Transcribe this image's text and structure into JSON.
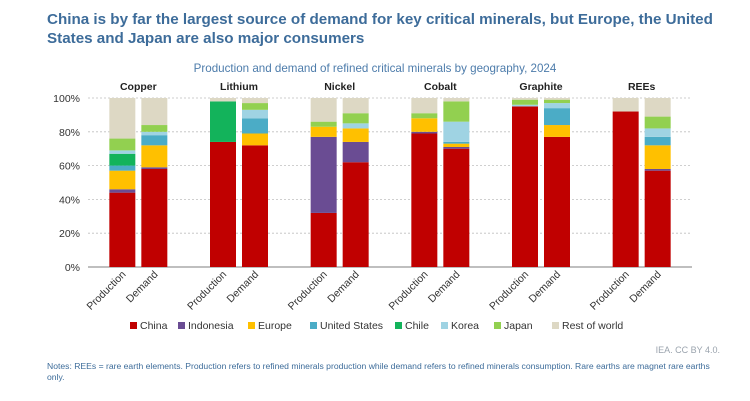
{
  "title": "China is by far the largest source of demand for key critical minerals, but Europe, the United States and Japan are also major consumers",
  "credit": "IEA. CC BY 4.0.",
  "notes": "Notes: REEs = rare earth elements. Production refers to refined minerals production while demand refers to refined minerals consumption. Rare earths are magnet rare earths only.",
  "chart_data": {
    "type": "bar",
    "stacked": true,
    "title": "Production and demand of refined critical minerals by geography, 2024",
    "ylim": [
      0,
      100
    ],
    "yticks": [
      "0%",
      "20%",
      "40%",
      "60%",
      "80%",
      "100%"
    ],
    "grid": true,
    "legend_position": "bottom",
    "groups": [
      "Copper",
      "Lithium",
      "Nickel",
      "Cobalt",
      "Graphite",
      "REEs"
    ],
    "categories": [
      "Production",
      "Demand"
    ],
    "series": [
      {
        "name": "China",
        "color": "#c00000",
        "values": [
          [
            44,
            58
          ],
          [
            74,
            72
          ],
          [
            32,
            62
          ],
          [
            79,
            70
          ],
          [
            95,
            77
          ],
          [
            92,
            57
          ]
        ]
      },
      {
        "name": "Indonesia",
        "color": "#6a4c93",
        "values": [
          [
            2,
            1
          ],
          [
            0,
            0
          ],
          [
            45,
            12
          ],
          [
            1,
            1
          ],
          [
            0,
            0
          ],
          [
            0,
            1
          ]
        ]
      },
      {
        "name": "Europe",
        "color": "#ffc000",
        "values": [
          [
            11,
            13
          ],
          [
            0,
            7
          ],
          [
            6,
            8
          ],
          [
            8,
            2
          ],
          [
            0,
            7
          ],
          [
            0,
            14
          ]
        ]
      },
      {
        "name": "United States",
        "color": "#4bacc6",
        "values": [
          [
            3,
            6
          ],
          [
            0,
            9
          ],
          [
            0,
            0
          ],
          [
            0,
            1
          ],
          [
            0,
            10
          ],
          [
            0,
            5
          ]
        ]
      },
      {
        "name": "Chile",
        "color": "#13b35b",
        "values": [
          [
            7,
            0
          ],
          [
            24,
            0
          ],
          [
            0,
            0
          ],
          [
            0,
            0
          ],
          [
            0,
            0
          ],
          [
            0,
            0
          ]
        ]
      },
      {
        "name": "Korea",
        "color": "#9fd3e3",
        "values": [
          [
            2,
            2
          ],
          [
            0,
            5
          ],
          [
            0,
            3
          ],
          [
            0,
            12
          ],
          [
            1,
            3
          ],
          [
            0,
            5
          ]
        ]
      },
      {
        "name": "Japan",
        "color": "#92d050",
        "values": [
          [
            7,
            4
          ],
          [
            0,
            4
          ],
          [
            3,
            6
          ],
          [
            3,
            12
          ],
          [
            3,
            2
          ],
          [
            0,
            7
          ]
        ]
      },
      {
        "name": "Rest of world",
        "color": "#ddd8c4",
        "values": [
          [
            24,
            16
          ],
          [
            2,
            3
          ],
          [
            14,
            9
          ],
          [
            9,
            2
          ],
          [
            1,
            1
          ],
          [
            8,
            11
          ]
        ]
      }
    ]
  }
}
